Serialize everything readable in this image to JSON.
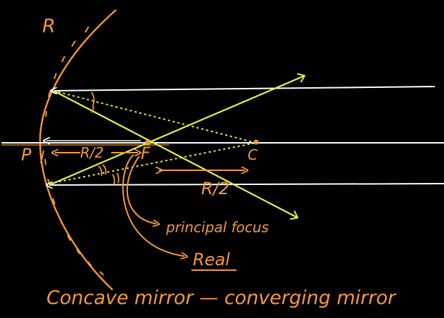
{
  "colors": {
    "background": "#000000",
    "ink_orange": "#F39A3A",
    "ray_yellow": "#E6F24A",
    "principal_axis": "#FFFFFF",
    "dotted_ray": "#E6F24A"
  },
  "labels": {
    "mirror_radius": "R",
    "pole": "P",
    "focus": "F",
    "center": "C",
    "pf_distance": "R/2",
    "fc_distance": "R/2",
    "principal_focus": "principal focus",
    "real": "Real",
    "caption": "Concave mirror — converging mirror"
  }
}
